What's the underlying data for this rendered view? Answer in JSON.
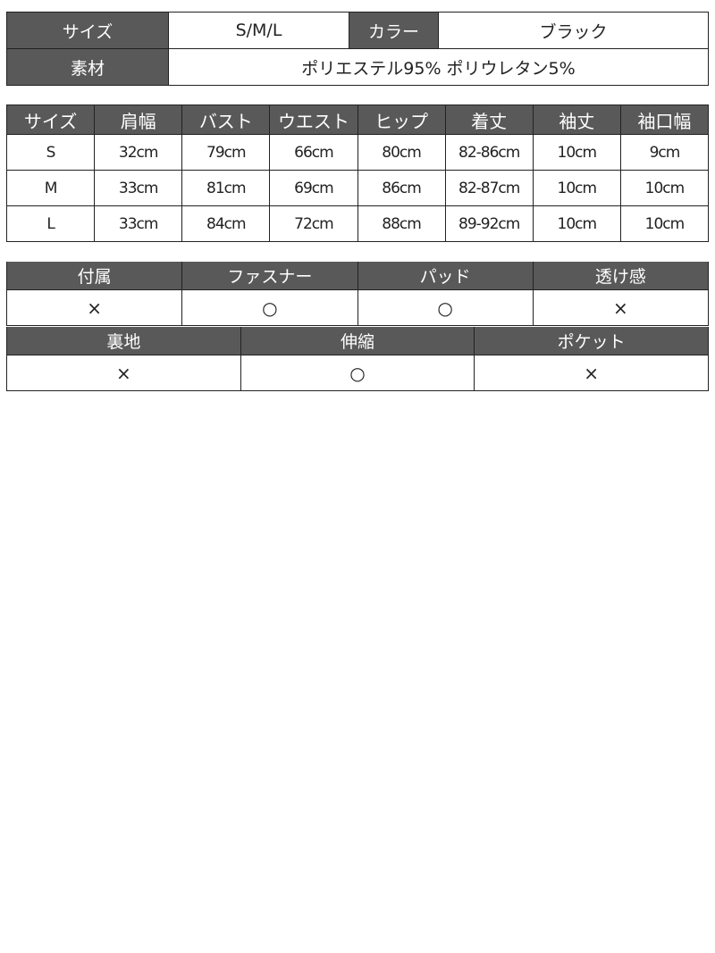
{
  "spec": {
    "size_label": "サイズ",
    "size_value": "S/M/L",
    "color_label": "カラー",
    "color_value": "ブラック",
    "material_label": "素材",
    "material_value": "ポリエステル95% ポリウレタン5%"
  },
  "size_table": {
    "headers": [
      "サイズ",
      "肩幅",
      "バスト",
      "ウエスト",
      "ヒップ",
      "着丈",
      "袖丈",
      "袖口幅"
    ],
    "rows": [
      [
        "S",
        "32cm",
        "79cm",
        "66cm",
        "80cm",
        "82-86cm",
        "10cm",
        "9cm"
      ],
      [
        "M",
        "33cm",
        "81cm",
        "69cm",
        "86cm",
        "82-87cm",
        "10cm",
        "10cm"
      ],
      [
        "L",
        "33cm",
        "84cm",
        "72cm",
        "88cm",
        "89-92cm",
        "10cm",
        "10cm"
      ]
    ]
  },
  "features_1": {
    "headers": [
      "付属",
      "ファスナー",
      "パッド",
      "透け感"
    ],
    "values": [
      "×",
      "○",
      "○",
      "×"
    ]
  },
  "features_2": {
    "headers": [
      "裏地",
      "伸縮",
      "ポケット"
    ],
    "values": [
      "×",
      "○",
      "×"
    ]
  },
  "colors": {
    "header_bg": "#595959",
    "header_text": "#ffffff",
    "border": "#222222"
  }
}
